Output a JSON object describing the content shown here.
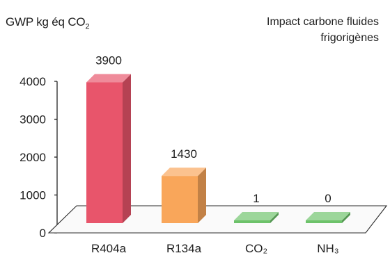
{
  "chart_data": {
    "type": "bar",
    "title": "Impact carbone fluides frigorigènes",
    "ylabel": "GWP kg éq CO₂",
    "xlabel": "",
    "categories": [
      "R404a",
      "R134a",
      "CO₂",
      "NH₃"
    ],
    "values": [
      3900,
      1430,
      1,
      0
    ],
    "data_labels": [
      "3900",
      "1430",
      "1",
      "0"
    ],
    "yticks": [
      0,
      1000,
      2000,
      3000,
      4000
    ],
    "ylim": [
      0,
      4000
    ],
    "grid": false,
    "style": "3d",
    "colors": {
      "R404a": "#e8556b",
      "R134a": "#f9a65a",
      "CO₂": "#6dc26a",
      "NH₃": "#6dc26a"
    }
  }
}
